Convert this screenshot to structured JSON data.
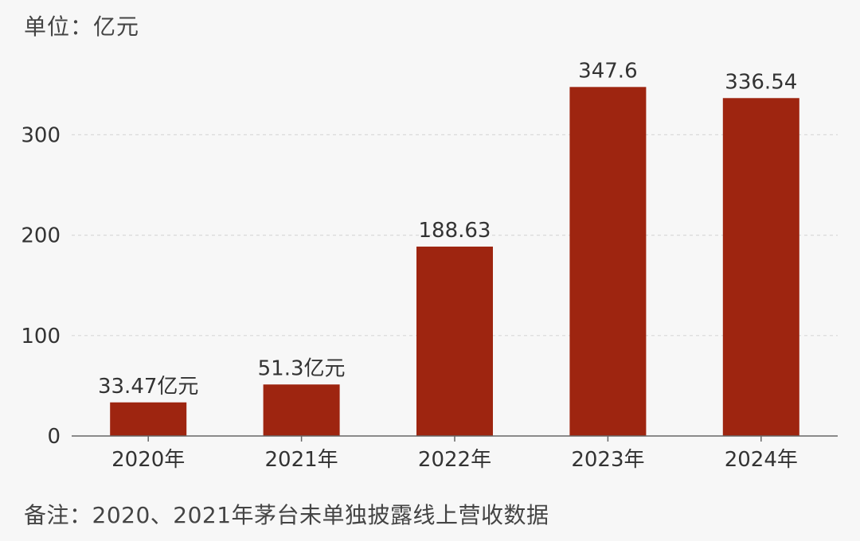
{
  "unit_label": "单位：亿元",
  "note": "备注：2020、2021年茅台未单独披露线上营收数据",
  "colors": {
    "bar": "#9e2510",
    "grid": "#d9d9d9",
    "axis": "#666666"
  },
  "chart_data": {
    "type": "bar",
    "categories": [
      "2020年",
      "2021年",
      "2022年",
      "2023年",
      "2024年"
    ],
    "values": [
      33.47,
      51.3,
      188.63,
      347.6,
      336.54
    ],
    "data_labels": [
      "33.47亿元",
      "51.3亿元",
      "188.63",
      "347.6",
      "336.54"
    ],
    "yticks": [
      0,
      100,
      200,
      300
    ],
    "ylim": [
      0,
      380
    ],
    "grid": true,
    "gridlines": [
      100,
      200,
      300
    ],
    "title": "",
    "xlabel": "",
    "ylabel": ""
  }
}
